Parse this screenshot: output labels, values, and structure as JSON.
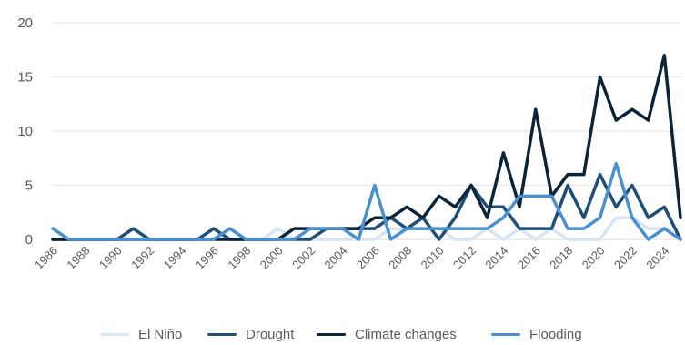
{
  "chart_data": {
    "type": "line",
    "title": "",
    "xlabel": "",
    "ylabel": "",
    "x": [
      1986,
      1987,
      1988,
      1989,
      1990,
      1991,
      1992,
      1993,
      1994,
      1995,
      1996,
      1997,
      1998,
      1999,
      2000,
      2001,
      2002,
      2003,
      2004,
      2005,
      2006,
      2007,
      2008,
      2009,
      2010,
      2011,
      2012,
      2013,
      2014,
      2015,
      2016,
      2017,
      2018,
      2019,
      2020,
      2021,
      2022,
      2023,
      2024,
      2025
    ],
    "x_tick_labels": [
      "1986",
      "1988",
      "1990",
      "1992",
      "1994",
      "1996",
      "1998",
      "2000",
      "2002",
      "2004",
      "2006",
      "2008",
      "2010",
      "2012",
      "2014",
      "2016",
      "2018",
      "2020",
      "2022",
      "2024"
    ],
    "ylim": [
      0,
      20
    ],
    "y_ticks": [
      "0",
      "5",
      "10",
      "15",
      "20"
    ],
    "grid": "horizontal",
    "legend_position": "bottom",
    "series": [
      {
        "name": "El Niño",
        "color": "#d6e4f4",
        "values": [
          0,
          0,
          0,
          0,
          0,
          0,
          0,
          0,
          0,
          0,
          0,
          0,
          0,
          0,
          1,
          0,
          0,
          0,
          0,
          0,
          0,
          1,
          1,
          1,
          1,
          0,
          0,
          1,
          0,
          1,
          0,
          1,
          0,
          0,
          0,
          2,
          2,
          1,
          1,
          0
        ]
      },
      {
        "name": "Drought",
        "color": "#1f4e79",
        "values": [
          0,
          0,
          0,
          0,
          0,
          1,
          0,
          0,
          0,
          0,
          1,
          0,
          0,
          0,
          0,
          0,
          0,
          1,
          1,
          1,
          1,
          2,
          1,
          2,
          0,
          2,
          5,
          3,
          3,
          1,
          1,
          1,
          5,
          2,
          6,
          3,
          5,
          2,
          3,
          0
        ]
      },
      {
        "name": "Climate changes",
        "color": "#0b2538",
        "values": [
          0,
          0,
          0,
          0,
          0,
          0,
          0,
          0,
          0,
          0,
          0,
          0,
          0,
          0,
          0,
          1,
          1,
          1,
          1,
          1,
          2,
          2,
          3,
          2,
          4,
          3,
          5,
          2,
          8,
          3,
          12,
          4,
          6,
          6,
          15,
          11,
          12,
          11,
          17,
          2
        ]
      },
      {
        "name": "Flooding",
        "color": "#4a8fd0",
        "values": [
          1,
          0,
          0,
          0,
          0,
          0,
          0,
          0,
          0,
          0,
          0,
          1,
          0,
          0,
          0,
          0,
          1,
          1,
          1,
          0,
          5,
          0,
          1,
          1,
          1,
          1,
          1,
          1,
          2,
          4,
          4,
          4,
          1,
          1,
          2,
          7,
          2,
          0,
          1,
          0
        ]
      }
    ]
  }
}
